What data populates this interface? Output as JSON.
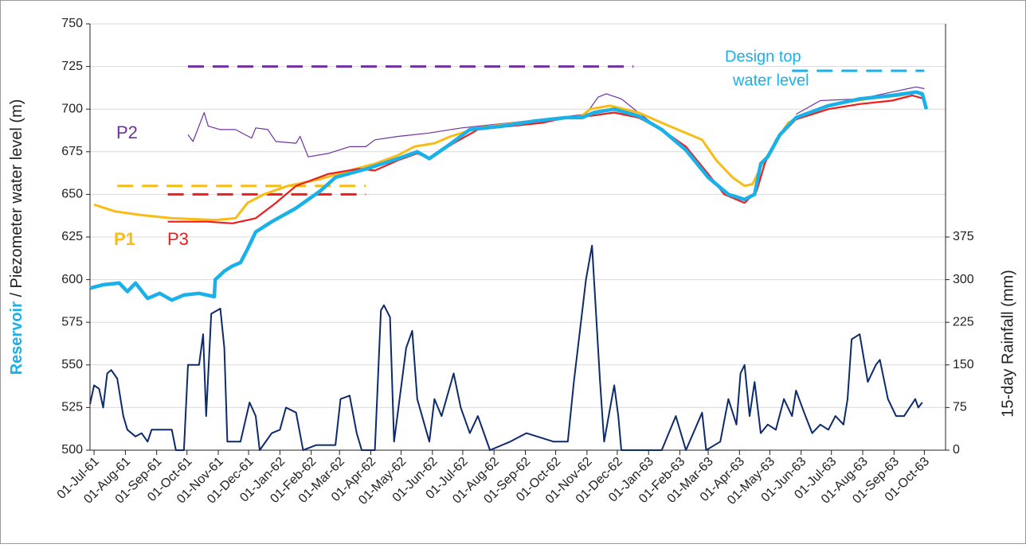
{
  "chart_data": {
    "type": "line",
    "y_label": {
      "highlight": "Reservoir",
      "rest": " / Piezometer water level (m)"
    },
    "y2_label": "15-day Rainfall (mm)",
    "annotations": [
      "Design top",
      "water level"
    ],
    "annotation_color": "#1ab0e8",
    "xlim": [
      "1961-06-27",
      "1963-10-22"
    ],
    "xticks": [
      {
        "value": "1961-07-01",
        "label": "01-Jul-61"
      },
      {
        "value": "1961-08-01",
        "label": "01-Aug-61"
      },
      {
        "value": "1961-09-01",
        "label": "01-Sep-61"
      },
      {
        "value": "1961-10-01",
        "label": "01-Oct-61"
      },
      {
        "value": "1961-11-01",
        "label": "01-Nov-61"
      },
      {
        "value": "1961-12-01",
        "label": "01-Dec-61"
      },
      {
        "value": "1962-01-01",
        "label": "01-Jan-62"
      },
      {
        "value": "1962-02-01",
        "label": "01-Feb-62"
      },
      {
        "value": "1962-03-01",
        "label": "01-Mar-62"
      },
      {
        "value": "1962-04-01",
        "label": "01-Apr-62"
      },
      {
        "value": "1962-05-01",
        "label": "01-May-62"
      },
      {
        "value": "1962-06-01",
        "label": "01-Jun-62"
      },
      {
        "value": "1962-07-01",
        "label": "01-Jul-62"
      },
      {
        "value": "1962-08-01",
        "label": "01-Aug-62"
      },
      {
        "value": "1962-09-01",
        "label": "01-Sep-62"
      },
      {
        "value": "1962-10-01",
        "label": "01-Oct-62"
      },
      {
        "value": "1962-11-01",
        "label": "01-Nov-62"
      },
      {
        "value": "1962-12-01",
        "label": "01-Dec-62"
      },
      {
        "value": "1963-01-01",
        "label": "01-Jan-63"
      },
      {
        "value": "1963-02-01",
        "label": "01-Feb-63"
      },
      {
        "value": "1963-03-01",
        "label": "01-Mar-63"
      },
      {
        "value": "1963-04-01",
        "label": "01-Apr-63"
      },
      {
        "value": "1963-05-01",
        "label": "01-May-63"
      },
      {
        "value": "1963-06-01",
        "label": "01-Jun-63"
      },
      {
        "value": "1963-07-01",
        "label": "01-Jul-63"
      },
      {
        "value": "1963-08-01",
        "label": "01-Aug-63"
      },
      {
        "value": "1963-09-01",
        "label": "01-Sep-63"
      },
      {
        "value": "1963-10-01",
        "label": "01-Oct-63"
      }
    ],
    "ylim": [
      500,
      750
    ],
    "yticks": [
      500,
      525,
      550,
      575,
      600,
      625,
      650,
      675,
      700,
      725,
      750
    ],
    "y2lim": [
      0,
      750
    ],
    "y2ticks": [
      0,
      75,
      150,
      225,
      300,
      375
    ],
    "grid": true,
    "series": [
      {
        "color": "#1ab0e8",
        "x": [
          "1961-06-27",
          "1961-07-10",
          "1961-07-26",
          "1961-08-03",
          "1961-08-11",
          "1961-08-23",
          "1961-09-04",
          "1961-09-16",
          "1961-09-28",
          "1961-10-13",
          "1961-10-28",
          "1961-10-29",
          "1961-11-07",
          "1961-11-15",
          "1961-11-23",
          "1961-11-30",
          "1961-12-08",
          "1961-12-24",
          "1962-01-17",
          "1962-02-10",
          "1962-02-25",
          "1962-03-28",
          "1962-04-28",
          "1962-05-17",
          "1962-05-29",
          "1962-06-15",
          "1962-07-08",
          "1962-08-09",
          "1962-09-10",
          "1962-10-11",
          "1962-10-27",
          "1962-11-08",
          "1962-11-28",
          "1962-12-22",
          "1963-01-14",
          "1963-02-07",
          "1963-03-01",
          "1963-03-21",
          "1963-04-06",
          "1963-04-16",
          "1963-04-22",
          "1963-04-29",
          "1963-05-11",
          "1963-05-27",
          "1963-06-28",
          "1963-07-29",
          "1963-08-30",
          "1963-09-23",
          "1963-09-29",
          "1963-10-03"
        ],
        "values": [
          595,
          597,
          598,
          593,
          598,
          589,
          592,
          588,
          591,
          592,
          590,
          600,
          605,
          608,
          610,
          618,
          628,
          634,
          642,
          652,
          660,
          665,
          671,
          675,
          671,
          678,
          688,
          690,
          693,
          695,
          695,
          698,
          700,
          696,
          688,
          676,
          660,
          650,
          647,
          650,
          668,
          672,
          685,
          695,
          702,
          706,
          708,
          710,
          709,
          700
        ]
      },
      {
        "name": "P1",
        "color": "#f9bc14",
        "x": [
          "1961-07-01",
          "1961-07-22",
          "1961-08-15",
          "1961-09-16",
          "1961-10-29",
          "1961-11-18",
          "1961-11-30",
          "1961-12-16",
          "1962-01-09",
          "1962-02-10",
          "1962-03-11",
          "1962-04-05",
          "1962-04-28",
          "1962-05-14",
          "1962-06-03",
          "1962-06-19",
          "1962-07-16",
          "1962-08-25",
          "1962-10-03",
          "1962-10-27",
          "1962-11-04",
          "1962-11-24",
          "1962-12-22",
          "1963-01-14",
          "1963-02-23",
          "1963-03-09",
          "1963-03-25",
          "1963-04-06",
          "1963-04-14",
          "1963-04-22",
          "1963-05-06",
          "1963-05-19",
          "1963-06-04",
          "1963-07-05",
          "1963-08-06",
          "1963-09-07",
          "1963-09-23",
          "1963-09-29"
        ],
        "values": [
          644,
          640,
          638,
          636,
          635,
          636,
          645,
          650,
          655,
          659,
          664,
          668,
          673,
          678,
          680,
          684,
          689,
          692,
          694,
          696,
          700,
          702,
          698,
          692,
          682,
          670,
          660,
          655,
          656,
          666,
          680,
          692,
          697,
          703,
          706,
          708,
          710,
          708
        ]
      },
      {
        "name": "P2",
        "color": "#7030a0",
        "x": [
          "1961-10-02",
          "1961-10-07",
          "1961-10-18",
          "1961-10-22",
          "1961-11-03",
          "1961-11-18",
          "1961-12-04",
          "1961-12-08",
          "1961-12-20",
          "1961-12-28",
          "1962-01-17",
          "1962-01-21",
          "1962-01-29",
          "1962-02-18",
          "1962-03-11",
          "1962-03-27",
          "1962-04-05",
          "1962-04-28",
          "1962-05-29",
          "1962-06-30",
          "1962-08-17",
          "1962-10-03",
          "1962-10-31",
          "1962-11-12",
          "1962-11-20",
          "1962-12-05",
          "1962-12-22",
          "1963-01-13",
          "1963-03-01",
          "1963-05-27",
          "1963-06-20",
          "1963-07-29",
          "1963-09-07",
          "1963-09-23",
          "1963-10-01"
        ],
        "values": [
          685,
          681,
          698,
          690,
          688,
          688,
          683,
          689,
          688,
          681,
          680,
          684,
          672,
          674,
          678,
          678,
          682,
          684,
          686,
          689,
          692,
          695,
          697,
          707,
          709,
          706,
          698,
          688,
          null,
          697,
          705,
          706,
          711,
          713,
          712
        ]
      },
      {
        "name": "P3",
        "color": "#ee1c1c",
        "x": [
          "1961-09-12",
          "1961-10-21",
          "1961-11-15",
          "1961-12-08",
          "1961-12-28",
          "1962-01-17",
          "1962-02-18",
          "1962-03-20",
          "1962-04-05",
          "1962-04-28",
          "1962-05-17",
          "1962-05-29",
          "1962-06-22",
          "1962-07-16",
          "1962-08-17",
          "1962-09-18",
          "1962-10-11",
          "1962-11-04",
          "1962-11-28",
          "1962-12-22",
          "1963-01-14",
          "1963-02-07",
          "1963-03-01",
          "1963-03-17",
          "1963-04-06",
          "1963-04-18",
          "1963-04-26",
          "1963-05-07",
          "1963-05-27",
          "1963-06-28",
          "1963-07-29",
          "1963-08-30",
          "1963-09-19",
          "1963-10-01"
        ],
        "values": [
          634,
          634,
          633,
          636,
          645,
          655,
          662,
          665,
          664,
          670,
          674,
          671,
          680,
          688,
          690,
          692,
          695,
          696,
          698,
          695,
          688,
          678,
          662,
          650,
          645,
          652,
          668,
          682,
          694,
          700,
          703,
          705,
          708,
          706
        ]
      },
      {
        "color": "#0d2a6b",
        "axis": "y2",
        "x": [
          "1961-06-27",
          "1961-07-01",
          "1961-07-06",
          "1961-07-10",
          "1961-07-14",
          "1961-07-18",
          "1961-07-24",
          "1961-07-30",
          "1961-08-03",
          "1961-08-11",
          "1961-08-17",
          "1961-08-23",
          "1961-08-27",
          "1961-09-16",
          "1961-09-20",
          "1961-09-28",
          "1961-10-02",
          "1961-10-13",
          "1961-10-17",
          "1961-10-20",
          "1961-10-25",
          "1961-11-03",
          "1961-11-07",
          "1961-11-10",
          "1961-11-23",
          "1961-12-02",
          "1961-12-08",
          "1961-12-12",
          "1961-12-24",
          "1962-01-01",
          "1962-01-07",
          "1962-01-17",
          "1962-01-24",
          "1962-02-06",
          "1962-02-25",
          "1962-03-02",
          "1962-03-11",
          "1962-03-18",
          "1962-03-23",
          "1962-04-05",
          "1962-04-11",
          "1962-04-14",
          "1962-04-20",
          "1962-04-24",
          "1962-05-06",
          "1962-05-12",
          "1962-05-17",
          "1962-05-29",
          "1962-06-03",
          "1962-06-10",
          "1962-06-22",
          "1962-06-29",
          "1962-07-08",
          "1962-07-16",
          "1962-07-28",
          "1962-08-17",
          "1962-09-02",
          "1962-09-29",
          "1962-10-13",
          "1962-10-19",
          "1962-10-31",
          "1962-11-06",
          "1962-11-09",
          "1962-11-14",
          "1962-11-18",
          "1962-11-24",
          "1962-11-28",
          "1962-12-02",
          "1962-12-05",
          "1963-01-14",
          "1963-01-28",
          "1963-02-07",
          "1963-02-23",
          "1963-02-27",
          "1963-03-13",
          "1963-03-21",
          "1963-03-29",
          "1963-04-02",
          "1963-04-06",
          "1963-04-11",
          "1963-04-16",
          "1963-04-22",
          "1963-04-29",
          "1963-05-07",
          "1963-05-15",
          "1963-05-23",
          "1963-05-27",
          "1963-06-04",
          "1963-06-12",
          "1963-06-20",
          "1963-06-28",
          "1963-07-05",
          "1963-07-13",
          "1963-07-17",
          "1963-07-21",
          "1963-07-29",
          "1963-08-06",
          "1963-08-14",
          "1963-08-18",
          "1963-08-26",
          "1963-09-03",
          "1963-09-11",
          "1963-09-22",
          "1963-09-25",
          "1963-09-29"
        ],
        "values": [
          81,
          114,
          108,
          75,
          135,
          141,
          126,
          60,
          36,
          24,
          30,
          15,
          36,
          36,
          0,
          0,
          150,
          150,
          204,
          60,
          240,
          249,
          180,
          15,
          15,
          84,
          60,
          0,
          30,
          36,
          75,
          66,
          0,
          9,
          9,
          90,
          96,
          30,
          0,
          0,
          246,
          255,
          234,
          15,
          180,
          210,
          90,
          15,
          90,
          60,
          135,
          75,
          30,
          60,
          0,
          15,
          30,
          15,
          15,
          120,
          300,
          360,
          270,
          120,
          15,
          75,
          114,
          60,
          0,
          0,
          60,
          0,
          66,
          0,
          15,
          90,
          45,
          135,
          150,
          60,
          120,
          30,
          45,
          36,
          90,
          60,
          105,
          66,
          30,
          45,
          36,
          60,
          45,
          90,
          195,
          204,
          120,
          150,
          159,
          90,
          60,
          60,
          90,
          75,
          84
        ]
      }
    ],
    "reference_lines": [
      {
        "color": "#f9bc14",
        "x": [
          "1961-07-24",
          "1962-03-27"
        ],
        "values": [
          655,
          655
        ]
      },
      {
        "color": "#ee1c1c",
        "x": [
          "1961-09-12",
          "1962-03-27"
        ],
        "values": [
          650,
          650
        ]
      },
      {
        "color": "#7030a0",
        "x": [
          "1961-10-02",
          "1962-12-17"
        ],
        "values": [
          725,
          725
        ]
      },
      {
        "color": "#1ab0e8",
        "x": [
          "1963-05-23",
          "1963-10-01"
        ],
        "values": [
          722.5,
          722.5
        ]
      }
    ]
  }
}
